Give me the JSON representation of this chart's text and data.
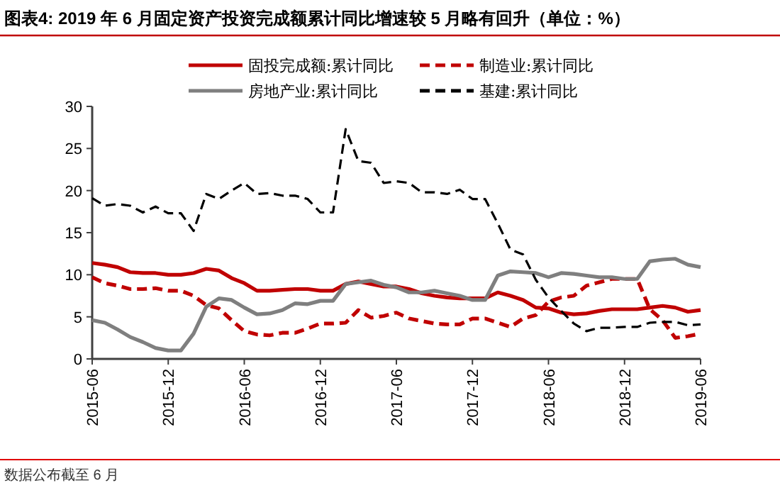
{
  "chart_data": {
    "type": "line",
    "title": "图表4:  2019 年 6 月固定资产投资完成额累计同比增速较 5 月略有回升（单位：%）",
    "annotations": [
      "数据公布截至 6 月"
    ],
    "x": [
      "2015-06",
      "2015-07",
      "2015-08",
      "2015-09",
      "2015-10",
      "2015-11",
      "2015-12",
      "2016-01",
      "2016-02",
      "2016-03",
      "2016-04",
      "2016-05",
      "2016-06",
      "2016-07",
      "2016-08",
      "2016-09",
      "2016-10",
      "2016-11",
      "2016-12",
      "2017-01",
      "2017-02",
      "2017-03",
      "2017-04",
      "2017-05",
      "2017-06",
      "2017-07",
      "2017-08",
      "2017-09",
      "2017-10",
      "2017-11",
      "2017-12",
      "2018-01",
      "2018-02",
      "2018-03",
      "2018-04",
      "2018-05",
      "2018-06",
      "2018-07",
      "2018-08",
      "2018-09",
      "2018-10",
      "2018-11",
      "2018-12",
      "2019-01",
      "2019-02",
      "2019-03",
      "2019-04",
      "2019-05",
      "2019-06"
    ],
    "series": [
      {
        "name": "固投完成额:累计同比",
        "color": "#c00000",
        "line_style": "solid",
        "values": [
          11.4,
          11.2,
          10.9,
          10.3,
          10.2,
          10.2,
          10.0,
          10.0,
          10.2,
          10.7,
          10.5,
          9.6,
          9.0,
          8.1,
          8.1,
          8.2,
          8.3,
          8.3,
          8.1,
          8.1,
          8.9,
          9.2,
          8.9,
          8.6,
          8.6,
          8.3,
          7.8,
          7.5,
          7.3,
          7.2,
          7.2,
          7.2,
          7.9,
          7.5,
          7.0,
          6.1,
          6.0,
          5.5,
          5.3,
          5.4,
          5.7,
          5.9,
          5.9,
          5.9,
          6.1,
          6.3,
          6.1,
          5.6,
          5.8
        ]
      },
      {
        "name": "制造业:累计同比",
        "color": "#c00000",
        "line_style": "dashed",
        "values": [
          9.7,
          9.0,
          8.7,
          8.3,
          8.3,
          8.4,
          8.1,
          8.1,
          7.5,
          6.4,
          6.0,
          4.6,
          3.3,
          2.9,
          2.8,
          3.1,
          3.1,
          3.6,
          4.2,
          4.2,
          4.3,
          5.8,
          4.9,
          5.1,
          5.5,
          4.8,
          4.5,
          4.2,
          4.1,
          4.1,
          4.8,
          4.8,
          4.3,
          3.8,
          4.8,
          5.2,
          6.8,
          7.3,
          7.5,
          8.7,
          9.1,
          9.5,
          9.5,
          9.5,
          5.9,
          4.6,
          2.5,
          2.7,
          3.0
        ]
      },
      {
        "name": "房地产业:累计同比",
        "color": "#7f7f7f",
        "line_style": "solid",
        "values": [
          4.6,
          4.3,
          3.5,
          2.6,
          2.0,
          1.3,
          1.0,
          1.0,
          3.0,
          6.2,
          7.2,
          7.0,
          6.1,
          5.3,
          5.4,
          5.8,
          6.6,
          6.5,
          6.9,
          6.9,
          8.9,
          9.1,
          9.3,
          8.8,
          8.5,
          7.9,
          7.9,
          8.1,
          7.8,
          7.5,
          7.0,
          7.0,
          9.9,
          10.4,
          10.3,
          10.2,
          9.7,
          10.2,
          10.1,
          9.9,
          9.7,
          9.7,
          9.5,
          9.5,
          11.6,
          11.8,
          11.9,
          11.2,
          10.9
        ]
      },
      {
        "name": "基建:累计同比",
        "color": "#000000",
        "line_style": "dashed",
        "values": [
          19.1,
          18.2,
          18.4,
          18.2,
          17.4,
          18.1,
          17.3,
          17.3,
          15.2,
          19.6,
          19.0,
          20.0,
          20.9,
          19.6,
          19.7,
          19.4,
          19.4,
          19.0,
          17.4,
          17.4,
          27.3,
          23.5,
          23.3,
          20.9,
          21.1,
          20.9,
          19.8,
          19.8,
          19.6,
          20.1,
          19.0,
          19.0,
          16.1,
          13.0,
          12.4,
          9.4,
          7.3,
          5.7,
          4.2,
          3.3,
          3.7,
          3.7,
          3.8,
          3.8,
          4.3,
          4.4,
          4.4,
          4.0,
          4.1
        ]
      }
    ],
    "xlim": [
      "2015-06",
      "2019-06"
    ],
    "xticks": [
      "2015-06",
      "2015-12",
      "2016-06",
      "2016-12",
      "2017-06",
      "2017-12",
      "2018-06",
      "2018-12",
      "2019-06"
    ],
    "ylim": [
      0,
      30
    ],
    "yticks": [
      0,
      5,
      10,
      15,
      20,
      25,
      30
    ],
    "grid": false,
    "legend": "top",
    "marker": "none"
  }
}
